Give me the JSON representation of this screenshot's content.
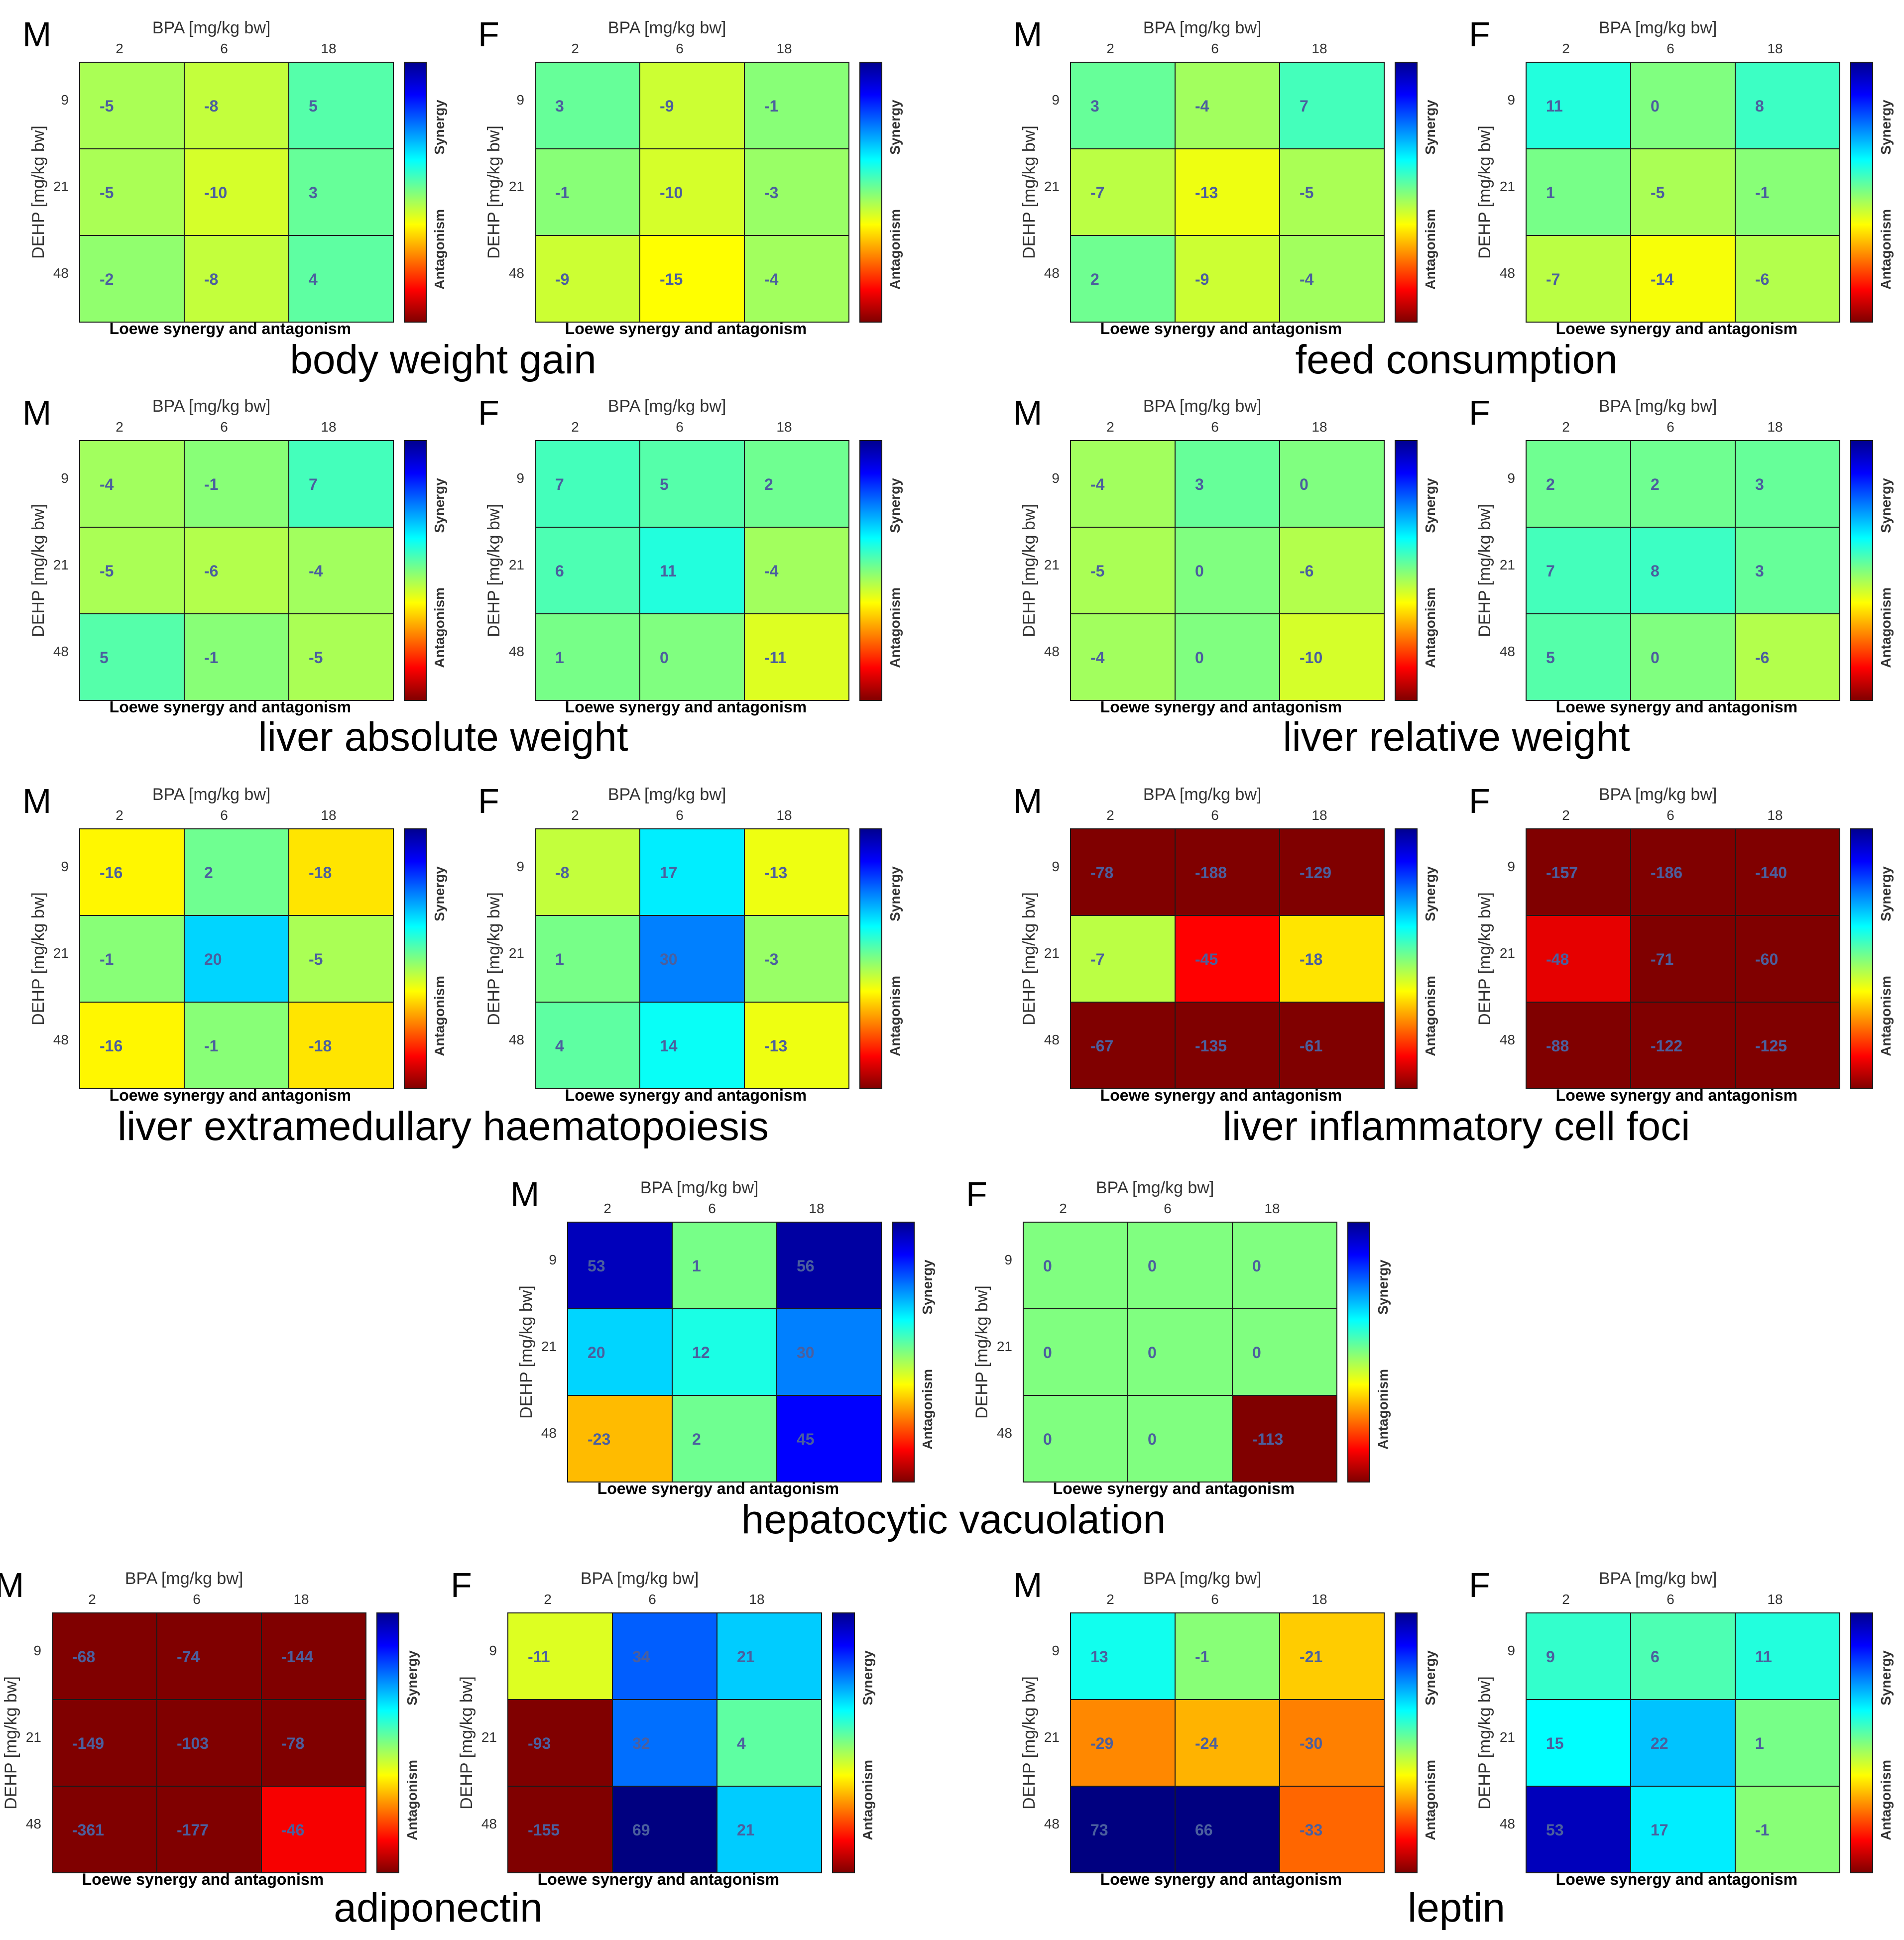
{
  "colors": {
    "colormap": "jet",
    "cell_border": "#1a1a1a",
    "value_text": "#4b5f9e",
    "axis_text": "#333333",
    "title_text": "#000000"
  },
  "common": {
    "x_axis_label": "BPA [mg/kg bw]",
    "y_axis_label": "DEHP [mg/kg bw]",
    "x_ticks": [
      "2",
      "6",
      "18"
    ],
    "y_ticks": [
      "9",
      "21",
      "48"
    ],
    "colorbar_labels": [
      "Synergy",
      "Antagonism"
    ],
    "footer_label": "Loewe synergy and antagonism"
  },
  "chart_data": [
    {
      "type": "heatmap",
      "title": "body weight gain",
      "panels": [
        {
          "sex": "M",
          "values": [
            [
              -5,
              -8,
              5
            ],
            [
              -5,
              -10,
              3
            ],
            [
              -2,
              -8,
              4
            ]
          ]
        },
        {
          "sex": "F",
          "values": [
            [
              3,
              -9,
              -1
            ],
            [
              -1,
              -10,
              -3
            ],
            [
              -9,
              -15,
              -4
            ]
          ]
        }
      ]
    },
    {
      "type": "heatmap",
      "title": "feed consumption",
      "panels": [
        {
          "sex": "M",
          "values": [
            [
              3,
              -4,
              7
            ],
            [
              -7,
              -13,
              -5
            ],
            [
              2,
              -9,
              -4
            ]
          ]
        },
        {
          "sex": "F",
          "values": [
            [
              11,
              0,
              8
            ],
            [
              1,
              -5,
              -1
            ],
            [
              -7,
              -14,
              -6
            ]
          ]
        }
      ]
    },
    {
      "type": "heatmap",
      "title": "liver absolute weight",
      "panels": [
        {
          "sex": "M",
          "values": [
            [
              -4,
              -1,
              7
            ],
            [
              -5,
              -6,
              -4
            ],
            [
              5,
              -1,
              -5
            ]
          ]
        },
        {
          "sex": "F",
          "values": [
            [
              7,
              5,
              2
            ],
            [
              6,
              11,
              -4
            ],
            [
              1,
              0,
              -11
            ]
          ]
        }
      ]
    },
    {
      "type": "heatmap",
      "title": "liver relative weight",
      "panels": [
        {
          "sex": "M",
          "values": [
            [
              -4,
              3,
              0
            ],
            [
              -5,
              0,
              -6
            ],
            [
              -4,
              0,
              -10
            ]
          ]
        },
        {
          "sex": "F",
          "values": [
            [
              2,
              2,
              3
            ],
            [
              7,
              8,
              3
            ],
            [
              5,
              0,
              -6
            ]
          ]
        }
      ]
    },
    {
      "type": "heatmap",
      "title": "liver extramedullary haematopoiesis",
      "panels": [
        {
          "sex": "M",
          "values": [
            [
              -16,
              2,
              -18
            ],
            [
              -1,
              20,
              -5
            ],
            [
              -16,
              -1,
              -18
            ]
          ]
        },
        {
          "sex": "F",
          "values": [
            [
              -8,
              17,
              -13
            ],
            [
              1,
              30,
              -3
            ],
            [
              4,
              14,
              -13
            ]
          ]
        }
      ]
    },
    {
      "type": "heatmap",
      "title": "liver inflammatory cell foci",
      "panels": [
        {
          "sex": "M",
          "values": [
            [
              -78,
              -188,
              -129
            ],
            [
              -7,
              -45,
              -18
            ],
            [
              -67,
              -135,
              -61
            ]
          ]
        },
        {
          "sex": "F",
          "values": [
            [
              -157,
              -186,
              -140
            ],
            [
              -48,
              -71,
              -60
            ],
            [
              -88,
              -122,
              -125
            ]
          ]
        }
      ]
    },
    {
      "type": "heatmap",
      "title": "hepatocytic vacuolation",
      "panels": [
        {
          "sex": "M",
          "values": [
            [
              53,
              1,
              56
            ],
            [
              20,
              12,
              30
            ],
            [
              -23,
              2,
              45
            ]
          ]
        },
        {
          "sex": "F",
          "values": [
            [
              0,
              0,
              0
            ],
            [
              0,
              0,
              0
            ],
            [
              0,
              0,
              -113
            ]
          ]
        }
      ]
    },
    {
      "type": "heatmap",
      "title": "adiponectin",
      "panels": [
        {
          "sex": "M",
          "values": [
            [
              -68,
              -74,
              -144
            ],
            [
              -149,
              -103,
              -78
            ],
            [
              -361,
              -177,
              -46
            ]
          ]
        },
        {
          "sex": "F",
          "values": [
            [
              -11,
              34,
              21
            ],
            [
              -93,
              32,
              4
            ],
            [
              -155,
              69,
              21
            ]
          ]
        }
      ]
    },
    {
      "type": "heatmap",
      "title": "leptin",
      "panels": [
        {
          "sex": "M",
          "values": [
            [
              13,
              -1,
              -21
            ],
            [
              -29,
              -24,
              -30
            ],
            [
              73,
              66,
              -33
            ]
          ]
        },
        {
          "sex": "F",
          "values": [
            [
              9,
              6,
              11
            ],
            [
              15,
              22,
              1
            ],
            [
              53,
              17,
              -1
            ]
          ]
        }
      ]
    }
  ]
}
